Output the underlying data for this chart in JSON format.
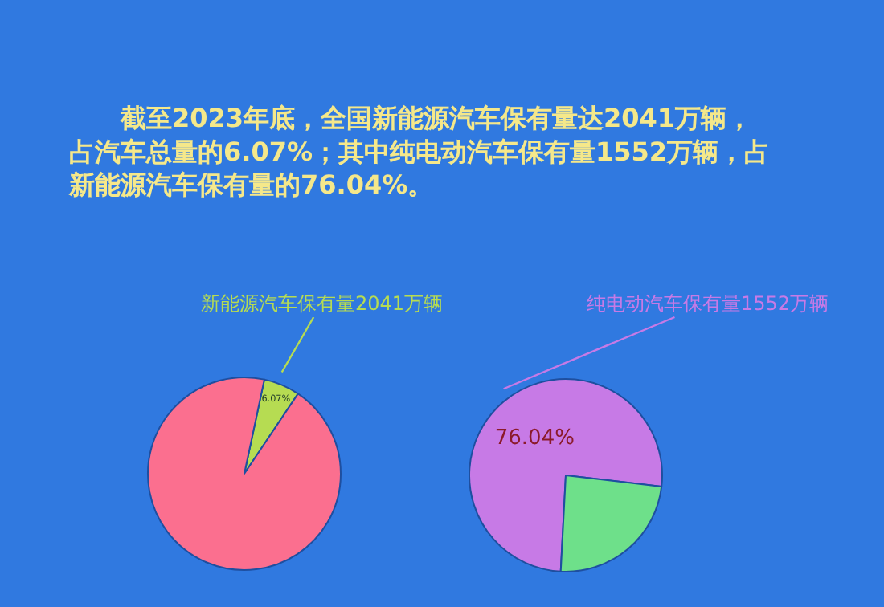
{
  "chart_data": [
    {
      "type": "pie",
      "title": "截至2023年底，全国新能源汽车保有量达2041万辆，占汽车总量的6.07%；其中纯电动汽车保有量1552万辆，占新能源汽车保有量的76.04%。",
      "categories": [
        "新能源汽车保有量2041万辆",
        null
      ],
      "values": [
        6.07,
        93.93
      ],
      "value_labels": [
        "6.07%",
        null
      ],
      "colors": [
        "#b6dc52",
        "#fb6f8f"
      ]
    },
    {
      "type": "pie",
      "categories": [
        "纯电动汽车保有量1552万辆",
        null
      ],
      "values": [
        76.04,
        23.96
      ],
      "value_labels": [
        "76.04%",
        null
      ],
      "colors": [
        "#c77ae6",
        "#6ee08a"
      ]
    }
  ]
}
